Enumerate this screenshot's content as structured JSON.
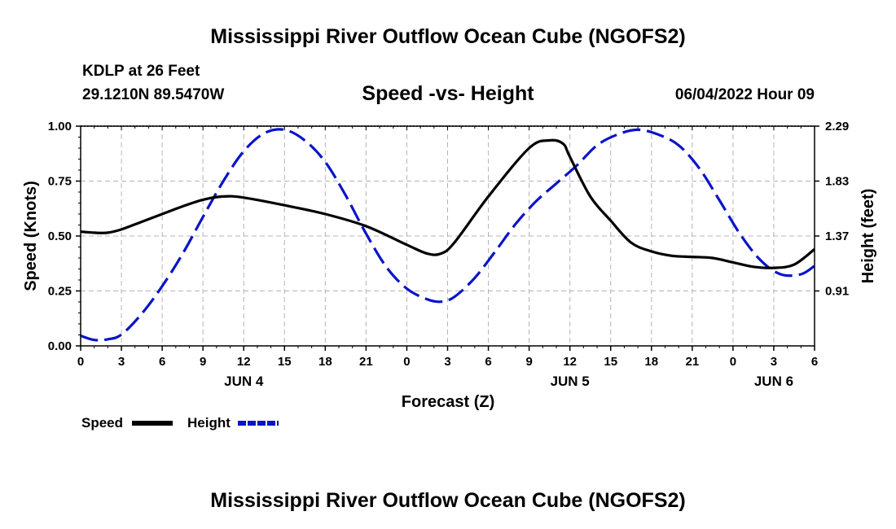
{
  "header": {
    "main_title": "Mississippi River Outflow Ocean Cube (NGOFS2)",
    "station": "KDLP at 26 Feet",
    "coords": "29.1210N  89.5470W",
    "subtitle": "Speed -vs- Height",
    "datetime": "06/04/2022 Hour 09"
  },
  "footer": {
    "title": "Mississippi River Outflow Ocean Cube (NGOFS2)"
  },
  "colors": {
    "speed": "#000000",
    "height": "#0a14c8",
    "grid": "#b4b4b4"
  },
  "chart_data": {
    "type": "line",
    "title": "Speed -vs- Height",
    "xlabel": "Forecast (Z)",
    "ylabel": "Speed (Knots)",
    "y2label": "Height (feet)",
    "xlim": [
      0,
      54
    ],
    "ylim": [
      0,
      1.0
    ],
    "y2lim": [
      0.45,
      2.29
    ],
    "xticks": [
      0,
      3,
      6,
      9,
      12,
      15,
      18,
      21,
      24,
      27,
      30,
      33,
      36,
      39,
      42,
      45,
      48,
      51,
      54
    ],
    "xtick_labels": [
      "0",
      "3",
      "6",
      "9",
      "12",
      "15",
      "18",
      "21",
      "0",
      "3",
      "6",
      "9",
      "12",
      "15",
      "18",
      "21",
      "0",
      "3",
      "6"
    ],
    "yticks": [
      0,
      0.25,
      0.5,
      0.75,
      1.0
    ],
    "ytick_labels": [
      "0.00",
      "0.25",
      "0.50",
      "0.75",
      "1.00"
    ],
    "y2ticks": [
      0.91,
      1.37,
      1.83,
      2.29
    ],
    "y2tick_labels": [
      "0.91",
      "1.37",
      "1.83",
      "2.29"
    ],
    "day_labels": [
      {
        "x": 12,
        "label": "JUN 4"
      },
      {
        "x": 36,
        "label": "JUN 5"
      },
      {
        "x": 51,
        "label": "JUN 6"
      }
    ],
    "grid": true,
    "legend": "bottom-left",
    "series": [
      {
        "name": "Speed",
        "axis": "left",
        "style": "solid",
        "color": "#000000",
        "x": [
          0,
          1,
          2,
          3,
          4.5,
          6,
          7.5,
          9,
          10.5,
          12,
          15,
          18,
          21,
          24,
          25.5,
          26.5,
          27.5,
          30,
          33,
          34.5,
          35.5,
          36,
          37.5,
          39,
          40.5,
          42,
          43.5,
          45,
          46.5,
          48,
          49.5,
          51,
          52.5,
          54
        ],
        "y": [
          0.52,
          0.515,
          0.515,
          0.53,
          0.565,
          0.6,
          0.635,
          0.665,
          0.68,
          0.675,
          0.64,
          0.6,
          0.545,
          0.46,
          0.42,
          0.42,
          0.47,
          0.68,
          0.9,
          0.935,
          0.92,
          0.86,
          0.68,
          0.57,
          0.47,
          0.43,
          0.41,
          0.405,
          0.4,
          0.38,
          0.36,
          0.355,
          0.37,
          0.44
        ]
      },
      {
        "name": "Height",
        "axis": "right",
        "style": "dashed",
        "color": "#0a14c8",
        "x": [
          0,
          1,
          2,
          3,
          4.5,
          6,
          7.5,
          9,
          10.5,
          12,
          13.5,
          15,
          16.5,
          18,
          19.5,
          21,
          22.5,
          24,
          25.5,
          26.5,
          27.5,
          29,
          30.5,
          32,
          33.5,
          35,
          36.5,
          38,
          39.5,
          41,
          42.5,
          44,
          45.5,
          47,
          48.5,
          50,
          51.5,
          53,
          54
        ],
        "y": [
          0.535,
          0.5,
          0.505,
          0.545,
          0.72,
          0.95,
          1.22,
          1.53,
          1.83,
          2.08,
          2.23,
          2.26,
          2.17,
          1.99,
          1.71,
          1.39,
          1.11,
          0.93,
          0.84,
          0.82,
          0.86,
          1.02,
          1.24,
          1.47,
          1.66,
          1.81,
          1.96,
          2.13,
          2.22,
          2.26,
          2.22,
          2.13,
          1.94,
          1.67,
          1.39,
          1.17,
          1.05,
          1.05,
          1.12
        ]
      }
    ]
  }
}
